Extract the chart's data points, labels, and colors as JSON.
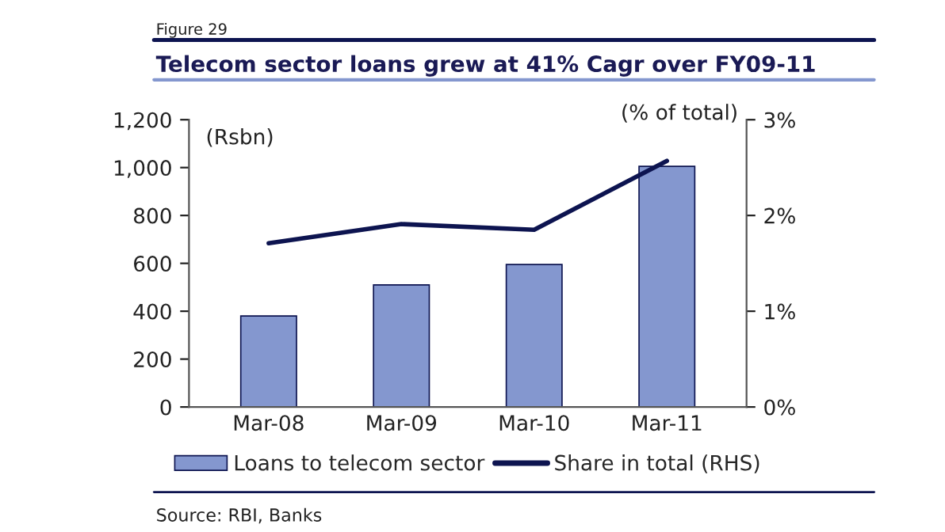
{
  "chart_data": {
    "type": "bar",
    "title": "Telecom sector loans grew at 41% Cagr over FY09-11",
    "categories": [
      "Mar-08",
      "Mar-09",
      "Mar-10",
      "Mar-11"
    ],
    "series": [
      {
        "name": "Loans to telecom sector",
        "color": "#8497cf",
        "values": [
          380,
          510,
          595,
          1005
        ]
      },
      {
        "name": "Share in total (RHS)",
        "type": "line",
        "axis": "y2",
        "color": "#0d1450",
        "values": [
          1.71,
          1.91,
          1.85,
          2.57
        ]
      }
    ],
    "ylabel": "(Rsbn)",
    "y2label": "(% of total)",
    "ylim": [
      0,
      1200
    ],
    "yticks": [
      0,
      {
        "value": 200,
        "label": "200"
      },
      {
        "value": 400,
        "label": "400"
      },
      {
        "value": 600,
        "label": "600"
      },
      {
        "value": 800,
        "label": "800"
      },
      {
        "value": 1000,
        "label": "1,000"
      },
      {
        "value": 1200,
        "label": "1,200"
      }
    ],
    "y2lim": [
      0,
      3
    ],
    "y2ticks": [
      {
        "value": 0,
        "label": "0%"
      },
      {
        "value": 1,
        "label": "1%"
      },
      {
        "value": 2,
        "label": "2%"
      },
      {
        "value": 3,
        "label": "3%"
      }
    ],
    "annotations": [
      "Figure 29",
      "Source: RBI, Banks"
    ],
    "legend": "bottom",
    "grid": false
  }
}
